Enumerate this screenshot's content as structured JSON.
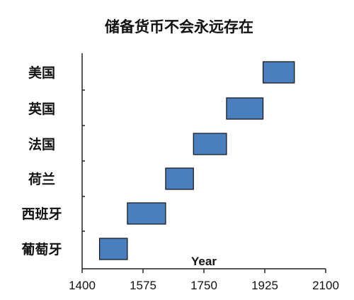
{
  "chart_data": {
    "type": "bar",
    "orientation": "horizontal",
    "title": "储备货币不会永远存在",
    "xlabel": "Year",
    "ylabel": "",
    "xlim": [
      1400,
      2100
    ],
    "xticks": [
      1400,
      1575,
      1750,
      1925,
      2100
    ],
    "grid": false,
    "legend": "none",
    "bar_color": "#4a7fbf",
    "categories": [
      "美国",
      "英国",
      "法国",
      "荷兰",
      "西班牙",
      "葡萄牙"
    ],
    "series": [
      {
        "values": [
          {
            "start": 1920,
            "end": 2010
          },
          {
            "start": 1815,
            "end": 1920
          },
          {
            "start": 1720,
            "end": 1815
          },
          {
            "start": 1640,
            "end": 1720
          },
          {
            "start": 1530,
            "end": 1640
          },
          {
            "start": 1450,
            "end": 1530
          }
        ]
      }
    ]
  }
}
